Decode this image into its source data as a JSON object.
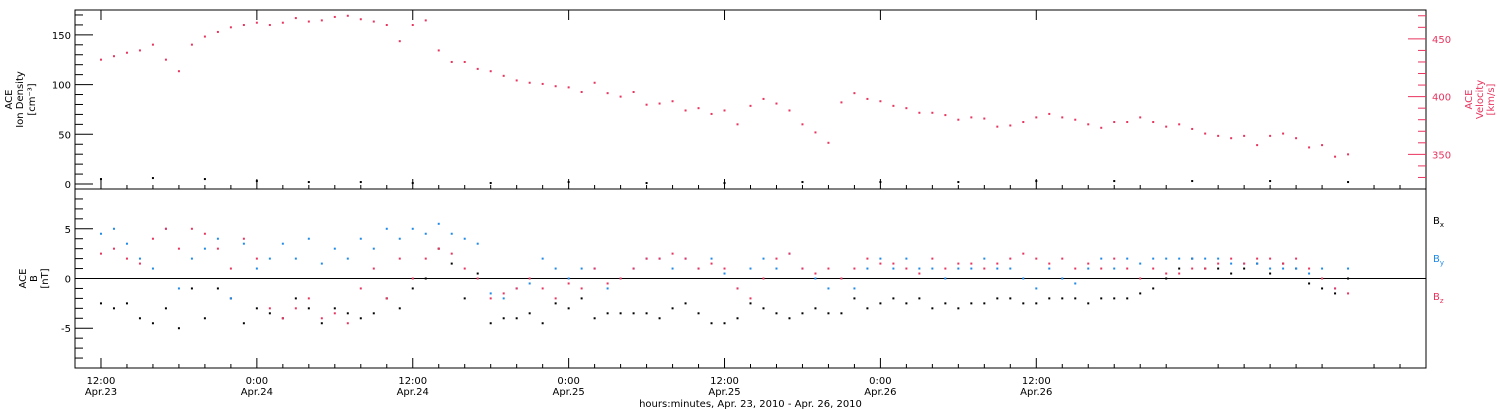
{
  "chart_data": [
    {
      "type": "scatter",
      "panel": "top",
      "title": "",
      "ylabel": [
        "ACE",
        "Ion Density",
        "[cm⁻³]"
      ],
      "ylabel_right": [
        "ACE",
        "Velocity",
        "[km/s]"
      ],
      "ylim": [
        -5,
        175
      ],
      "yticks": [
        "0",
        "50",
        "100",
        "150"
      ],
      "ylim_right": [
        320,
        475
      ],
      "yticks_right": [
        "350",
        "400",
        "450"
      ],
      "colors": {
        "velocity": "#e8345e",
        "density": "#000000"
      },
      "series": [
        {
          "name": "",
          "axis": "right",
          "color": "#e8345e",
          "x": [
            0,
            1,
            2,
            3,
            4,
            5,
            6,
            7,
            8,
            9,
            10,
            11,
            12,
            13,
            14,
            15,
            16,
            17,
            18,
            19,
            20,
            21,
            22,
            23,
            24,
            25,
            26,
            27,
            28,
            29,
            30,
            31,
            32,
            33,
            34,
            35,
            36,
            37,
            38,
            39,
            40,
            41,
            42,
            43,
            44,
            45,
            46,
            47,
            48,
            49,
            50,
            51,
            52,
            53,
            54,
            55,
            56,
            57,
            58,
            59,
            60,
            61,
            62,
            63,
            64,
            65,
            66,
            67,
            68,
            69,
            70,
            71,
            72,
            73,
            74,
            75,
            76,
            77,
            78,
            79,
            80,
            81,
            82,
            83,
            84,
            85,
            86,
            87,
            88,
            89,
            90,
            91,
            92,
            93,
            94,
            95,
            96
          ],
          "y": [
            432,
            435,
            438,
            440,
            445,
            432,
            422,
            445,
            452,
            456,
            460,
            462,
            464,
            462,
            464,
            468,
            465,
            466,
            469,
            470,
            467,
            465,
            462,
            448,
            462,
            466,
            440,
            430,
            430,
            424,
            422,
            418,
            414,
            412,
            411,
            409,
            408,
            404,
            412,
            403,
            400,
            404,
            393,
            394,
            396,
            388,
            390,
            385,
            388,
            376,
            392,
            398,
            394,
            388,
            376,
            369,
            360,
            395,
            403,
            398,
            396,
            392,
            390,
            386,
            386,
            384,
            380,
            382,
            381,
            374,
            375,
            378,
            382,
            385,
            382,
            380,
            376,
            373,
            378,
            378,
            382,
            378,
            374,
            376,
            372,
            368,
            366,
            364,
            366,
            358,
            366,
            368,
            364,
            356,
            358,
            348,
            350
          ]
        },
        {
          "name": "",
          "axis": "left",
          "color": "#000000",
          "x": [
            0,
            4,
            8,
            12,
            16,
            20,
            24,
            30,
            36,
            42,
            48,
            54,
            60,
            66,
            72,
            78,
            84,
            90,
            96
          ],
          "y": [
            5,
            6,
            5,
            3,
            2,
            2,
            1,
            1,
            2,
            1,
            1,
            2,
            2,
            2,
            3,
            3,
            3,
            3,
            2
          ]
        }
      ]
    },
    {
      "type": "scatter",
      "panel": "bottom",
      "title": "",
      "ylabel": [
        "ACE",
        "B",
        "[nT]"
      ],
      "ylim": [
        -9,
        9
      ],
      "yticks": [
        "-5",
        "0",
        "5"
      ],
      "zero_line": true,
      "colors": {
        "Bx": "#000000",
        "By": "#1f8ae8",
        "Bz": "#e8345e"
      },
      "legend_placement": "right",
      "series": [
        {
          "name": "Bx",
          "legend_main": "B",
          "legend_sub": "x",
          "color": "#000000",
          "x": [
            0,
            1,
            2,
            3,
            4,
            5,
            6,
            7,
            8,
            9,
            10,
            11,
            12,
            13,
            14,
            15,
            16,
            17,
            18,
            19,
            20,
            21,
            22,
            23,
            24,
            25,
            26,
            27,
            28,
            29,
            30,
            31,
            32,
            33,
            34,
            35,
            36,
            37,
            38,
            39,
            40,
            41,
            42,
            43,
            44,
            45,
            46,
            47,
            48,
            49,
            50,
            51,
            52,
            53,
            54,
            55,
            56,
            57,
            58,
            59,
            60,
            61,
            62,
            63,
            64,
            65,
            66,
            67,
            68,
            69,
            70,
            71,
            72,
            73,
            74,
            75,
            76,
            77,
            78,
            79,
            80,
            81,
            82,
            83,
            84,
            85,
            86,
            87,
            88,
            89,
            90,
            91,
            92,
            93,
            94,
            95,
            96
          ],
          "y": [
            -2.5,
            -3,
            -2.5,
            -4,
            -4.5,
            -3,
            -5,
            -1,
            -4,
            -1,
            -2,
            -4.5,
            -3,
            -3.5,
            -4,
            -2,
            -3,
            -4.5,
            -3,
            -3.5,
            -4,
            -3.5,
            -2,
            -3,
            -1,
            0,
            3,
            1.5,
            -2,
            0.5,
            -4.5,
            -4,
            -4,
            -3.5,
            -4.5,
            -2.5,
            -3,
            -2,
            -4,
            -3.5,
            -3.5,
            -3.5,
            -3.5,
            -4,
            -3,
            -2.5,
            -3.5,
            -4.5,
            -4.5,
            -4,
            -2.5,
            -3,
            -3.5,
            -4,
            -3.5,
            -3,
            -3.5,
            -3.5,
            -2,
            -3,
            -2.5,
            -2,
            -2.5,
            -2,
            -3,
            -2.5,
            -3,
            -2.5,
            -2.5,
            -2,
            -2,
            -2.5,
            -2.5,
            -2,
            -2,
            -2,
            -2.5,
            -2,
            -2,
            -2,
            -1.5,
            -1,
            0,
            1,
            2,
            1,
            1,
            0.5,
            1,
            1.5,
            0.5,
            1.5,
            1,
            -0.5,
            -1,
            -1.5,
            0
          ]
        },
        {
          "name": "By",
          "legend_main": "B",
          "legend_sub": "y",
          "color": "#1f8ae8",
          "x": [
            0,
            1,
            2,
            3,
            4,
            5,
            6,
            7,
            8,
            9,
            10,
            11,
            12,
            13,
            14,
            15,
            16,
            17,
            18,
            19,
            20,
            21,
            22,
            23,
            24,
            25,
            26,
            27,
            28,
            29,
            30,
            31,
            32,
            33,
            34,
            35,
            36,
            37,
            38,
            39,
            40,
            41,
            42,
            43,
            44,
            45,
            46,
            47,
            48,
            49,
            50,
            51,
            52,
            53,
            54,
            55,
            56,
            57,
            58,
            59,
            60,
            61,
            62,
            63,
            64,
            65,
            66,
            67,
            68,
            69,
            70,
            71,
            72,
            73,
            74,
            75,
            76,
            77,
            78,
            79,
            80,
            81,
            82,
            83,
            84,
            85,
            86,
            87,
            88,
            89,
            90,
            91,
            92,
            93,
            94,
            95,
            96
          ],
          "y": [
            4.5,
            5,
            3.5,
            2,
            1,
            5,
            -1,
            2,
            3,
            4,
            -2,
            3.5,
            1,
            2,
            3.5,
            2,
            4,
            1.5,
            3,
            2,
            4,
            3,
            5,
            4,
            5,
            4.5,
            5.5,
            4.5,
            4,
            3.5,
            -1.5,
            -2,
            -1,
            -0.5,
            2,
            1,
            0,
            1,
            1,
            -1,
            0,
            1,
            2,
            2,
            1,
            2,
            1,
            2,
            0.5,
            -1,
            1,
            2,
            1,
            2.5,
            1,
            0,
            -1,
            0,
            -1,
            1,
            2,
            1,
            2,
            1,
            1,
            0,
            1,
            1,
            2,
            1,
            1,
            0,
            -1,
            1,
            0,
            -0.5,
            1,
            2,
            1,
            2,
            1.5,
            2,
            2,
            2,
            2,
            2,
            2,
            1.5,
            1.5,
            1.5,
            1,
            1,
            1,
            0.5,
            1,
            -1,
            1
          ]
        },
        {
          "name": "Bz",
          "legend_main": "B",
          "legend_sub": "z",
          "color": "#e8345e",
          "x": [
            0,
            1,
            2,
            3,
            4,
            5,
            6,
            7,
            8,
            9,
            10,
            11,
            12,
            13,
            14,
            15,
            16,
            17,
            18,
            19,
            20,
            21,
            22,
            23,
            24,
            25,
            26,
            27,
            28,
            29,
            30,
            31,
            32,
            33,
            34,
            35,
            36,
            37,
            38,
            39,
            40,
            41,
            42,
            43,
            44,
            45,
            46,
            47,
            48,
            49,
            50,
            51,
            52,
            53,
            54,
            55,
            56,
            57,
            58,
            59,
            60,
            61,
            62,
            63,
            64,
            65,
            66,
            67,
            68,
            69,
            70,
            71,
            72,
            73,
            74,
            75,
            76,
            77,
            78,
            79,
            80,
            81,
            82,
            83,
            84,
            85,
            86,
            87,
            88,
            89,
            90,
            91,
            92,
            93,
            94,
            95,
            96
          ],
          "y": [
            2.5,
            3,
            2,
            1.5,
            4,
            5,
            3,
            5,
            4.5,
            3,
            1,
            4,
            2,
            -3,
            -4,
            -3,
            -2,
            -4,
            -3.5,
            -4.5,
            -1,
            1,
            -2,
            2,
            0,
            2,
            3,
            2.5,
            1,
            0,
            -2,
            -1.5,
            -1,
            0,
            -1,
            -2,
            -0.5,
            -1,
            1,
            -0.5,
            0,
            1,
            2,
            2,
            2.5,
            2,
            1,
            1.5,
            1,
            -1,
            -2,
            0,
            2,
            2.5,
            1,
            0.5,
            1,
            0,
            1,
            2,
            1.5,
            1.5,
            1,
            0.5,
            2,
            1,
            1.5,
            1.5,
            1,
            1.5,
            2,
            2.5,
            2,
            1.5,
            2,
            1,
            1.5,
            1,
            2,
            1,
            0,
            1,
            0.5,
            0.5,
            1,
            1,
            1.5,
            2,
            1.5,
            2,
            2,
            1.5,
            2,
            1,
            0,
            -1,
            -1.5
          ]
        }
      ]
    }
  ],
  "x_axis": {
    "xlim_hours": [
      -2,
      102
    ],
    "ticks": [
      {
        "x": 0,
        "time": "12:00",
        "date": "Apr.23"
      },
      {
        "x": 12,
        "time": "0:00",
        "date": "Apr.24"
      },
      {
        "x": 24,
        "time": "12:00",
        "date": "Apr.24"
      },
      {
        "x": 36,
        "time": "0:00",
        "date": "Apr.25"
      },
      {
        "x": 48,
        "time": "12:00",
        "date": "Apr.25"
      },
      {
        "x": 60,
        "time": "0:00",
        "date": "Apr.26"
      },
      {
        "x": 72,
        "time": "12:00",
        "date": "Apr.26"
      }
    ],
    "label": "hours:minutes, Apr. 23, 2010 - Apr. 26, 2010"
  }
}
